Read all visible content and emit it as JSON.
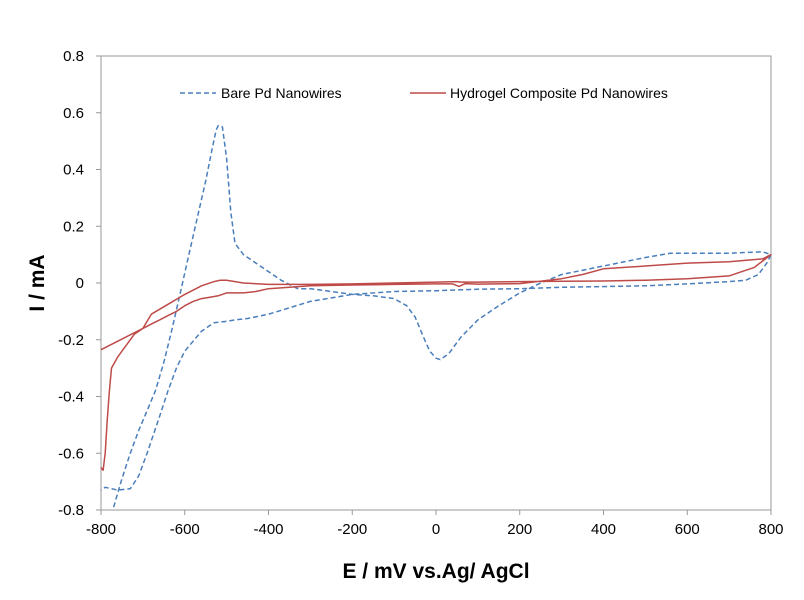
{
  "chart_data": {
    "type": "line",
    "xlabel": "E / mV vs.Ag/ AgCl",
    "ylabel": "I / mA",
    "xlim": [
      -800,
      800
    ],
    "ylim": [
      -0.8,
      0.8
    ],
    "x_ticks": [
      -800,
      -600,
      -400,
      -200,
      0,
      200,
      400,
      600,
      800
    ],
    "y_ticks": [
      -0.8,
      -0.6,
      -0.4,
      -0.2,
      0,
      0.2,
      0.4,
      0.6,
      0.8
    ],
    "x_tick_labels": [
      "-800",
      "-600",
      "-400",
      "-200",
      "0",
      "200",
      "400",
      "600",
      "800"
    ],
    "y_tick_labels": [
      "-0.8",
      "-0.6",
      "-0.4",
      "-0.2",
      "0",
      "0.2",
      "0.4",
      "0.6",
      "0.8"
    ],
    "grid": false,
    "legend_position": "top",
    "series": [
      {
        "name": "Bare Pd Nanowires",
        "color": "#4a7ebb",
        "style": "dashed",
        "x": [
          -770,
          -750,
          -730,
          -710,
          -690,
          -670,
          -650,
          -630,
          -610,
          -590,
          -570,
          -550,
          -535,
          -525,
          -520,
          -510,
          -500,
          -490,
          -480,
          -460,
          -430,
          -400,
          -370,
          -330,
          -300,
          -250,
          -200,
          -150,
          -100,
          -70,
          -50,
          -30,
          -15,
          0,
          10,
          30,
          60,
          100,
          150,
          200,
          250,
          300,
          400,
          500,
          560,
          620,
          700,
          780,
          800,
          790,
          770,
          740,
          700,
          600,
          500,
          300,
          200,
          100,
          0,
          -100,
          -200,
          -300,
          -400,
          -450,
          -480,
          -500,
          -530,
          -560,
          -600,
          -620,
          -640,
          -660,
          -690,
          -710,
          -730,
          -760,
          -790,
          -800
        ],
        "y": [
          -0.79,
          -0.69,
          -0.6,
          -0.52,
          -0.45,
          -0.38,
          -0.28,
          -0.16,
          -0.03,
          0.1,
          0.23,
          0.36,
          0.47,
          0.54,
          0.555,
          0.55,
          0.44,
          0.25,
          0.14,
          0.1,
          0.07,
          0.04,
          0.01,
          -0.02,
          -0.02,
          -0.03,
          -0.04,
          -0.045,
          -0.055,
          -0.08,
          -0.12,
          -0.19,
          -0.24,
          -0.265,
          -0.27,
          -0.25,
          -0.19,
          -0.13,
          -0.08,
          -0.035,
          0.0,
          0.03,
          0.06,
          0.09,
          0.105,
          0.105,
          0.105,
          0.11,
          0.1,
          0.07,
          0.03,
          0.01,
          0.005,
          -0.003,
          -0.01,
          -0.015,
          -0.02,
          -0.022,
          -0.027,
          -0.03,
          -0.04,
          -0.065,
          -0.11,
          -0.125,
          -0.13,
          -0.135,
          -0.14,
          -0.17,
          -0.24,
          -0.3,
          -0.38,
          -0.47,
          -0.6,
          -0.68,
          -0.725,
          -0.73,
          -0.72,
          -0.73
        ]
      },
      {
        "name": "Hydrogel Composite Pd Nanowires",
        "color": "#be4b48",
        "style": "solid",
        "x": [
          -800,
          -780,
          -760,
          -740,
          -720,
          -700,
          -680,
          -660,
          -640,
          -620,
          -600,
          -580,
          -560,
          -540,
          -520,
          -500,
          -480,
          -460,
          -430,
          -400,
          -350,
          -300,
          -200,
          -100,
          0,
          40,
          55,
          70,
          100,
          200,
          300,
          350,
          400,
          500,
          600,
          700,
          780,
          800,
          760,
          720,
          700,
          600,
          500,
          400,
          300,
          200,
          100,
          60,
          50,
          0,
          -100,
          -200,
          -300,
          -400,
          -460,
          -480,
          -500,
          -510,
          -515,
          -530,
          -560,
          -600,
          -640,
          -680,
          -700,
          -720,
          -740,
          -760,
          -775,
          -780,
          -785,
          -790,
          -795,
          -800
        ],
        "y": [
          -0.235,
          -0.22,
          -0.205,
          -0.19,
          -0.175,
          -0.16,
          -0.145,
          -0.13,
          -0.115,
          -0.1,
          -0.08,
          -0.065,
          -0.055,
          -0.05,
          -0.045,
          -0.035,
          -0.035,
          -0.035,
          -0.03,
          -0.02,
          -0.015,
          -0.01,
          -0.007,
          -0.005,
          -0.003,
          -0.003,
          -0.012,
          -0.002,
          -0.004,
          -0.002,
          0.015,
          0.03,
          0.05,
          0.06,
          0.07,
          0.075,
          0.085,
          0.1,
          0.055,
          0.035,
          0.025,
          0.015,
          0.01,
          0.007,
          0.006,
          0.005,
          0.003,
          0.003,
          0.005,
          0.003,
          0.0,
          -0.003,
          -0.005,
          -0.005,
          0.0,
          0.005,
          0.01,
          0.01,
          0.01,
          0.005,
          -0.01,
          -0.04,
          -0.075,
          -0.11,
          -0.16,
          -0.18,
          -0.22,
          -0.26,
          -0.3,
          -0.38,
          -0.48,
          -0.6,
          -0.66,
          -0.65
        ]
      }
    ]
  }
}
